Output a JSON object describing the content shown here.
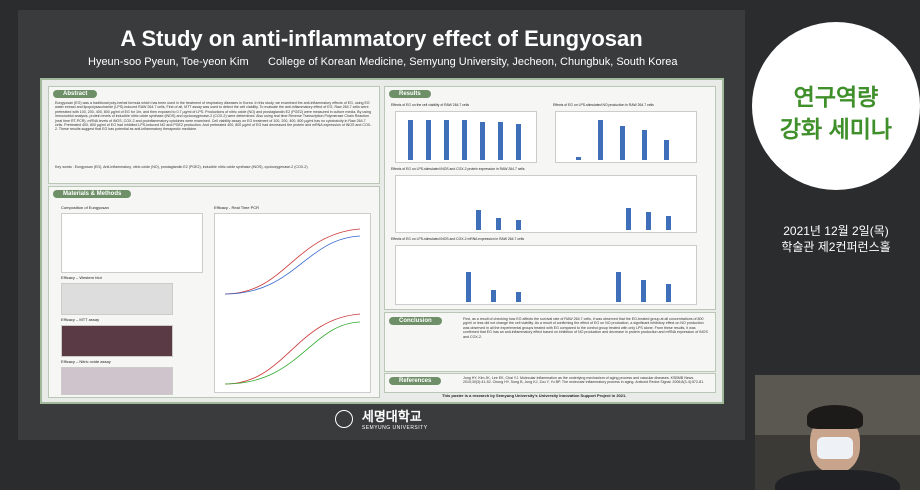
{
  "poster": {
    "title": "A Study on anti-inflammatory effect of Eungyosan",
    "authors": "Hyeun-soo Pyeun,  Toe-yeon Kim",
    "affiliation": "College of Korean Medicine, Semyung University, Jecheon, Chungbuk, South Korea",
    "sections": {
      "abstract": "Abstract",
      "methods": "Materials & Methods",
      "results": "Results",
      "conclusion": "Conclusion",
      "references": "References"
    },
    "abstract_text": "Eungyosan (EG) was a traditional poly-herbal formula which has been used in the treatment of respiratory diseases in Korea. In this study, we examined the anti-inflammatory effects of EG, using EG water extract and lipopolysaccharide (LPS)-induced RAW 264.7 cells. First of all, MTT assay was used to detect the cell viability. To evaluate the anti-inflammatory effect of EG, Raw 264.7 cells were pretreated with 100, 200, 400, 800 μg/ml of EG for 1hr, and then exposed to 0.7 μg/ml of LPS. Productions of nitric oxide (NO) and prostaglandin E2 (PGE2) were measured in culture media. By using immunoblot analysis, protein levels of inducible nitric oxide synthase (iNOS) and cyclooxygenase-2 (COX-2) were determined. Also using real time Reverse Transcription Polymerase Chain Reaction (real time RT-PCR), mRNA levels of iNOS, COX-2 and proinflammatory cytokines were examined. Cell viability assay on EG treatment of 100, 200, 400, 800 μg/ml has no cytotoxicity in Raw 264.7 cells. Pretreated 400, 800 μg/ml of EG had inhibited LPS-induced NO and PGE2 production. And pretreated 400, 800 μg/ml of EG had decreased the protein and mRNA expression of iNOS and COX-2. These results suggest that EG has potential as anti-inflammatory therapeutic medicine.",
    "keywords": "Key words : Eungyosan (EG), Anti-inflammatory, nitric oxide (NO), prostaglandin E2 (PGE2), inducible nitric oxide synthase (iNOS), cyclooxygenase-2 (COX-2)",
    "methods_items": [
      "Composition of Eungyosan",
      "Efficacy – Western blot",
      "Efficacy – MTT assay",
      "Efficacy – Nitric oxide assay",
      "Efficacy - Real Time PCR"
    ],
    "results_items": [
      "Effects of EG on the cell viability of RAW 264.7 cells",
      "Effects of EG on LPS-stimulated NO production in RAW 264.7 cells",
      "Effects of EG on LPS-stimulated iNOS and COX-2 protein expression in RAW 264.7 cells",
      "Effects of EG on LPS-stimulated iNOS and COX-2 mRNA expression in RAW 264.7 cells"
    ],
    "conclusion_text": "First, as a result of checking how EG affects the survival rate of RAW 264.7 cells, it was observed that the EG-treated group at all concentrations of 800 μg/ml or less did not change the cell viability. As a result of confirming the effect of EG on NO production, a significant inhibitory effect on NO production was observed in all the experimental groups treated with EG compared to the control group treated with only LPS alone. From these results, it was confirmed that EG has an anti-inflammatory effect based on inhibition of NO production and decrease in protein production and mRNA expression of iNOS and COX-2.",
    "references_text": "Jung HY, Kim JK, Lee EK, Chai YJ. Molecular inflammation as the underlying mechanism of aging process and vascular diseases. KSBMB News. 2010;30(3):41-52. Chung HY, Sung B, Jung KJ, Zou Y, Yu BP. The molecular inflammatory process in aging. Antioxid Redox Signal. 2006;8(3-4):572-81.",
    "acknowledgement": "This poster is a research by Semyung University's University Innovation Support Project in 2021."
  },
  "logo": {
    "korean": "세명대학교",
    "english": "SEMYUNG UNIVERSITY"
  },
  "seminar": {
    "title_line1": "연구역량",
    "title_line2": "강화 세미나",
    "date": "2021년 12월 2일(목)",
    "venue": "학술관 제2컨퍼런스홀"
  }
}
